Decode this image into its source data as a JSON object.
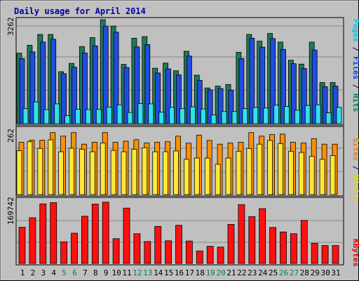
{
  "chart_data": {
    "type": "bar",
    "title": "Daily usage for April 2014",
    "categories": [
      "1",
      "2",
      "3",
      "4",
      "5",
      "6",
      "7",
      "8",
      "9",
      "10",
      "11",
      "12",
      "13",
      "14",
      "15",
      "16",
      "17",
      "18",
      "19",
      "20",
      "21",
      "22",
      "23",
      "24",
      "25",
      "26",
      "27",
      "28",
      "29",
      "30",
      "31"
    ],
    "weekend_days": [
      "5",
      "6",
      "12",
      "13",
      "19",
      "20",
      "26",
      "27"
    ],
    "panels": [
      {
        "name": "top",
        "ymax_label": "3262",
        "ylim": [
          0,
          3262
        ],
        "right_label": [
          {
            "text": "Pages",
            "color": "#00c8e8"
          },
          {
            "text": " / ",
            "color": "#000080"
          },
          {
            "text": "Files",
            "color": "#0040ff"
          },
          {
            "text": " / ",
            "color": "#000080"
          },
          {
            "text": "Hits",
            "color": "#00805c"
          }
        ],
        "series": [
          {
            "name": "Hits",
            "color": "#1f7a5a",
            "values": [
              2210,
              2460,
              2800,
              2800,
              1630,
              1890,
              2420,
              2700,
              3262,
              3060,
              1860,
              2680,
              2730,
              1740,
              1900,
              1660,
              2270,
              1520,
              1120,
              1180,
              1230,
              2240,
              2800,
              2590,
              2830,
              2560,
              1990,
              1870,
              2560,
              1290,
              1290
            ]
          },
          {
            "name": "Files",
            "color": "#1e4de0",
            "values": [
              2040,
              2250,
              2560,
              2650,
              1570,
              1770,
              2220,
              2440,
              3060,
              2870,
              1760,
              2410,
              2480,
              1590,
              1720,
              1530,
              2120,
              1360,
              1060,
              1100,
              1050,
              2040,
              2680,
              2400,
              2670,
              2330,
              1880,
              1730,
              2310,
              1160,
              1180
            ]
          },
          {
            "name": "Pages",
            "color": "#33e0f0",
            "values": [
              470,
              680,
              440,
              620,
              250,
              450,
              440,
              450,
              520,
              590,
              350,
              630,
              620,
              360,
              510,
              470,
              530,
              460,
              270,
              380,
              380,
              470,
              510,
              490,
              580,
              540,
              420,
              570,
              590,
              340,
              510
            ]
          }
        ]
      },
      {
        "name": "middle",
        "ymax_label": "262",
        "ylim": [
          0,
          262
        ],
        "right_label": [
          {
            "text": "Sites",
            "color": "#f08000"
          },
          {
            "text": " / ",
            "color": "#000080"
          },
          {
            "text": "Visits",
            "color": "#e8d800"
          }
        ],
        "series": [
          {
            "name": "Visits",
            "color": "#ff9000",
            "values": [
              208,
              216,
              216,
              246,
              232,
              246,
              200,
              208,
              246,
              208,
              212,
              218,
              205,
              208,
              210,
              232,
              204,
              236,
              215,
              200,
              205,
              208,
              246,
              232,
              238,
              240,
              208,
              205,
              222,
              200,
              200
            ]
          },
          {
            "name": "Sites",
            "color": "#ffe838",
            "values": [
              174,
              210,
              183,
              217,
              170,
              184,
              180,
              170,
              205,
              175,
              170,
              180,
              186,
              170,
              170,
              173,
              140,
              145,
              145,
              120,
              145,
              172,
              183,
              200,
              215,
              202,
              172,
              167,
              152,
              140,
              155
            ]
          }
        ]
      },
      {
        "name": "bottom",
        "ymax_label": "169742",
        "ylim": [
          0,
          169742
        ],
        "right_label": [
          {
            "text": "KBytes",
            "color": "#e80000"
          }
        ],
        "series": [
          {
            "name": "KBytes",
            "color": "#ff1010",
            "values": [
              96020,
              121350,
              158100,
              161480,
              57360,
              80290,
              125440,
              157580,
              162600,
              65810,
              146930,
              78850,
              58200,
              98240,
              60130,
              101340,
              59580,
              33120,
              45520,
              43380,
              103690,
              156100,
              124490,
              145580,
              95460,
              83650,
              78850,
              114380,
              53560,
              47530,
              47530
            ]
          }
        ]
      }
    ]
  }
}
